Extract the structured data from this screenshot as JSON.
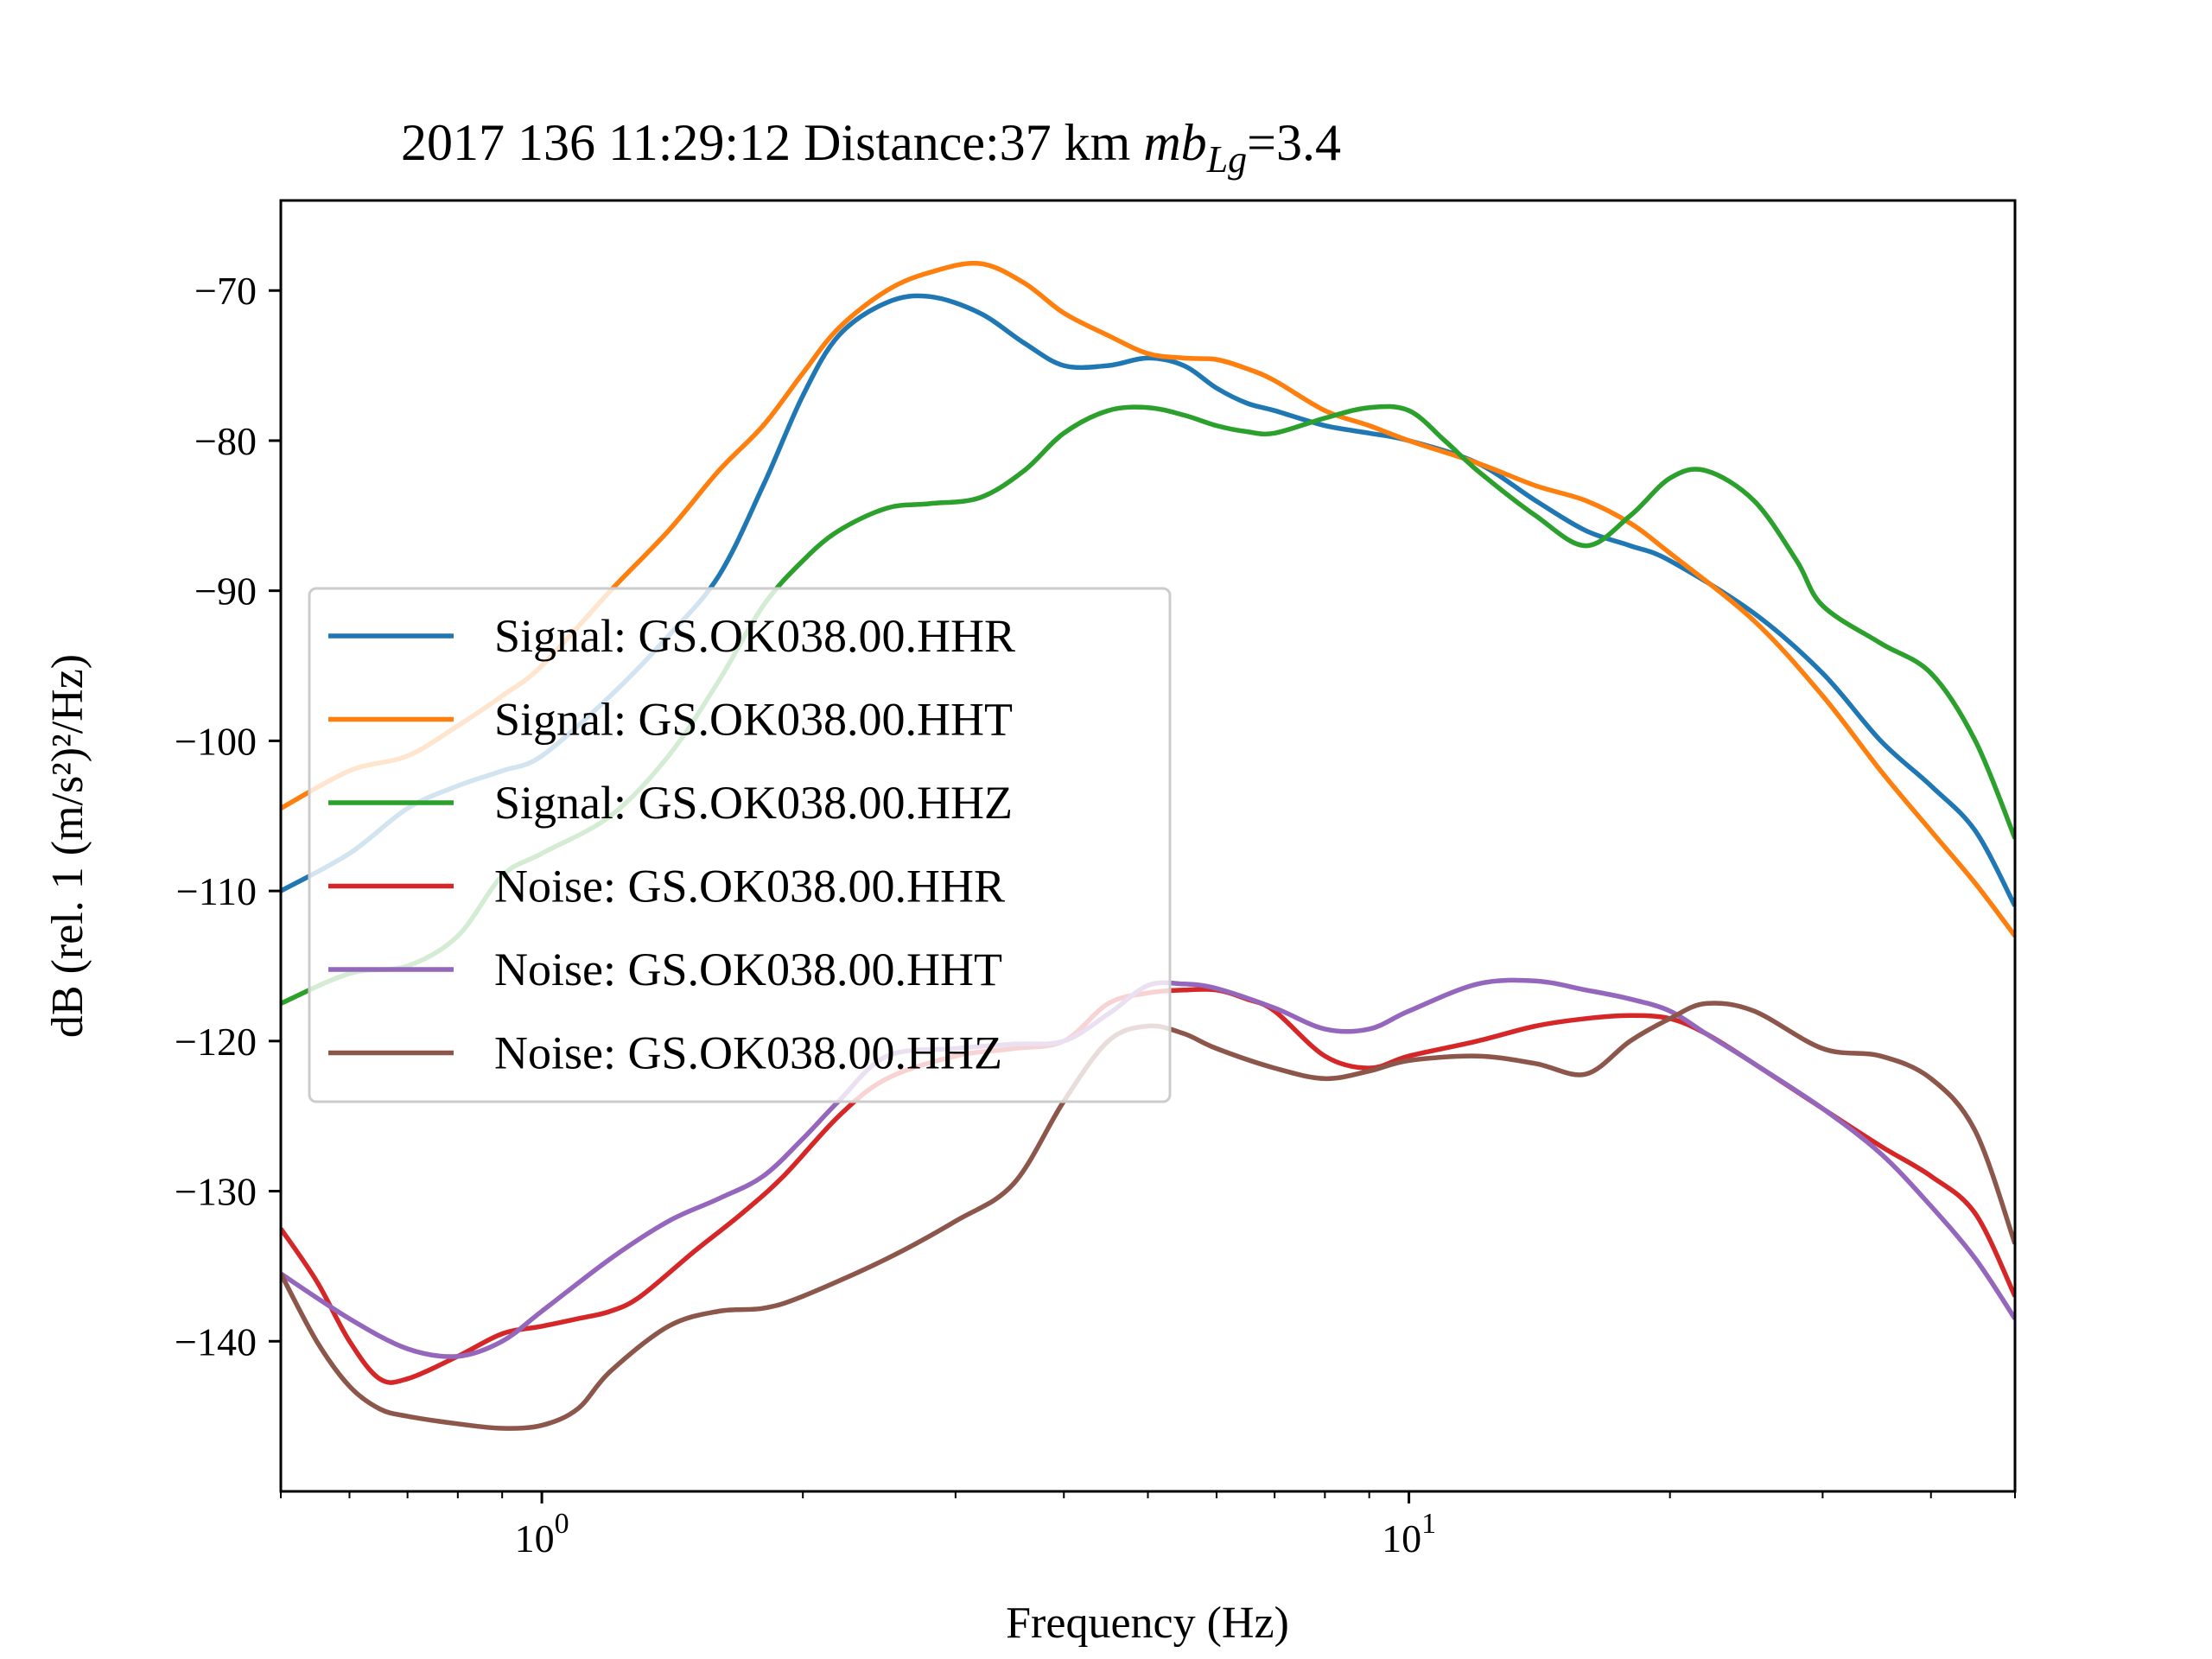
{
  "chart_data": {
    "type": "line",
    "title_main": "2017 136 11:29:12 Distance:37 km ",
    "title_mb": "mb",
    "title_sub": "Lg",
    "title_value": "=3.4",
    "xlabel": "Frequency (Hz)",
    "ylabel": "dB (rel. 1 (m/s²)²/Hz)",
    "xscale": "log",
    "xlim": [
      0.5,
      50
    ],
    "ylim": [
      -150,
      -64
    ],
    "x_ticks": [
      {
        "value": 1,
        "base": "10",
        "exp": "0"
      },
      {
        "value": 10,
        "base": "10",
        "exp": "1"
      }
    ],
    "y_ticks": [
      {
        "value": -70,
        "label": "−70"
      },
      {
        "value": -80,
        "label": "−80"
      },
      {
        "value": -90,
        "label": "−90"
      },
      {
        "value": -100,
        "label": "−100"
      },
      {
        "value": -110,
        "label": "−110"
      },
      {
        "value": -120,
        "label": "−120"
      },
      {
        "value": -130,
        "label": "−130"
      },
      {
        "value": -140,
        "label": "−140"
      }
    ],
    "legend_position": "center-left",
    "grid": false,
    "series": [
      {
        "name": "Signal: GS.OK038.00.HHR",
        "color": "#1f77b4",
        "x": [
          0.5,
          0.6,
          0.7,
          0.8,
          0.9,
          1.0,
          1.2,
          1.4,
          1.6,
          1.8,
          2.0,
          2.2,
          2.5,
          2.8,
          3.2,
          3.6,
          4.0,
          4.5,
          5.0,
          5.5,
          6.0,
          6.5,
          7,
          8,
          9,
          10,
          12,
          14,
          16,
          18,
          20,
          25,
          30,
          35,
          40,
          45,
          50
        ],
        "y": [
          -110,
          -107.5,
          -104.5,
          -103,
          -102,
          -101,
          -97,
          -93,
          -89,
          -83,
          -77,
          -73,
          -70.8,
          -70.4,
          -71.5,
          -73.5,
          -75,
          -75,
          -74.5,
          -75,
          -76.5,
          -77.5,
          -78,
          -79,
          -79.5,
          -80,
          -81.5,
          -84,
          -86,
          -87,
          -88,
          -91.5,
          -95.5,
          -100,
          -103,
          -106,
          -111
        ]
      },
      {
        "name": "Signal: GS.OK038.00.HHT",
        "color": "#ff7f0e",
        "x": [
          0.5,
          0.6,
          0.7,
          0.8,
          0.9,
          1.0,
          1.2,
          1.4,
          1.6,
          1.8,
          2.0,
          2.2,
          2.5,
          2.8,
          3.2,
          3.6,
          4.0,
          4.5,
          5.0,
          5.5,
          6.0,
          6.5,
          7,
          8,
          9,
          10,
          12,
          14,
          16,
          18,
          20,
          25,
          30,
          35,
          40,
          45,
          50
        ],
        "y": [
          -104.5,
          -102,
          -101,
          -99,
          -97,
          -95,
          -90,
          -86,
          -82,
          -79,
          -75.5,
          -72.5,
          -70,
          -68.8,
          -68.2,
          -69.5,
          -71.5,
          -73,
          -74.2,
          -74.5,
          -74.6,
          -75.2,
          -76,
          -78,
          -79,
          -80,
          -81.5,
          -83,
          -84,
          -85.5,
          -87.5,
          -92,
          -97,
          -102,
          -106,
          -109.5,
          -113
        ]
      },
      {
        "name": "Signal: GS.OK038.00.HHZ",
        "color": "#2ca02c",
        "x": [
          0.5,
          0.6,
          0.7,
          0.8,
          0.9,
          1.0,
          1.2,
          1.4,
          1.6,
          1.8,
          2.0,
          2.2,
          2.5,
          2.8,
          3.2,
          3.6,
          4.0,
          4.5,
          5.0,
          5.5,
          6.0,
          6.5,
          7,
          8,
          9,
          10,
          11,
          12,
          14,
          16,
          18,
          20,
          22,
          25,
          28,
          30,
          35,
          40,
          45,
          50
        ],
        "y": [
          -117.5,
          -115.5,
          -115,
          -113,
          -109,
          -107.5,
          -105,
          -101,
          -96,
          -91,
          -88,
          -86,
          -84.5,
          -84.2,
          -83.8,
          -82,
          -79.5,
          -78,
          -77.8,
          -78.3,
          -79,
          -79.4,
          -79.5,
          -78.5,
          -77.8,
          -78,
          -80,
          -82,
          -85,
          -87,
          -85,
          -82.5,
          -82,
          -84,
          -88,
          -91,
          -93.5,
          -95.5,
          -100,
          -106.5
        ]
      },
      {
        "name": "Noise: GS.OK038.00.HHR",
        "color": "#d62728",
        "x": [
          0.5,
          0.55,
          0.6,
          0.65,
          0.7,
          0.8,
          0.9,
          1.0,
          1.1,
          1.2,
          1.3,
          1.5,
          1.7,
          1.9,
          2.2,
          2.5,
          3.0,
          3.5,
          4.0,
          4.5,
          5.0,
          5.5,
          6.0,
          6.5,
          7,
          8,
          9,
          10,
          12,
          14,
          16,
          18,
          20,
          22,
          25,
          30,
          35,
          40,
          45,
          50
        ],
        "y": [
          -132.5,
          -136,
          -140,
          -142.5,
          -142.5,
          -141,
          -139.5,
          -139,
          -138.5,
          -138,
          -137,
          -134,
          -131.5,
          -129,
          -125,
          -122.5,
          -121,
          -120.5,
          -120,
          -117.5,
          -116.8,
          -116.6,
          -116.6,
          -117.2,
          -118,
          -121,
          -121.8,
          -121,
          -120,
          -119,
          -118.5,
          -118.3,
          -118.5,
          -119.5,
          -121.5,
          -124.5,
          -127,
          -129,
          -131.5,
          -137
        ]
      },
      {
        "name": "Noise: GS.OK038.00.HHT",
        "color": "#9467bd",
        "x": [
          0.5,
          0.6,
          0.7,
          0.8,
          0.9,
          1.0,
          1.2,
          1.4,
          1.6,
          1.8,
          2.0,
          2.2,
          2.5,
          3.0,
          3.5,
          4.0,
          4.5,
          5.0,
          5.5,
          6.0,
          7,
          8,
          9,
          10,
          12,
          14,
          16,
          18,
          20,
          22,
          25,
          30,
          35,
          40,
          45,
          50
        ],
        "y": [
          -135.5,
          -138.5,
          -140.5,
          -141,
          -140,
          -138,
          -134.5,
          -132,
          -130.5,
          -129,
          -126.5,
          -124,
          -121,
          -120.5,
          -120.2,
          -120,
          -118.2,
          -116.3,
          -116.2,
          -116.5,
          -117.8,
          -119.2,
          -119.2,
          -118,
          -116.2,
          -116,
          -116.6,
          -117.2,
          -118,
          -119.5,
          -121.5,
          -124.5,
          -127.5,
          -131,
          -134.5,
          -138.5
        ]
      },
      {
        "name": "Noise: GS.OK038.00.HHZ",
        "color": "#8c564b",
        "x": [
          0.5,
          0.55,
          0.6,
          0.65,
          0.7,
          0.8,
          0.9,
          1.0,
          1.1,
          1.2,
          1.4,
          1.6,
          1.8,
          2.0,
          2.5,
          3.0,
          3.5,
          4.0,
          4.5,
          5.0,
          5.5,
          6.0,
          7,
          8,
          9,
          10,
          12,
          14,
          16,
          18,
          20,
          22,
          25,
          30,
          35,
          40,
          45,
          50
        ],
        "y": [
          -135.5,
          -140,
          -143,
          -144.5,
          -145,
          -145.5,
          -145.8,
          -145.6,
          -144.5,
          -142,
          -139,
          -138,
          -137.8,
          -137,
          -134.5,
          -132,
          -129.5,
          -124,
          -120,
          -119,
          -119.5,
          -120.5,
          -121.8,
          -122.5,
          -122,
          -121.3,
          -121,
          -121.5,
          -122.2,
          -120,
          -118.5,
          -117.5,
          -118,
          -120.5,
          -121,
          -122.5,
          -126,
          -133.5
        ]
      }
    ]
  }
}
